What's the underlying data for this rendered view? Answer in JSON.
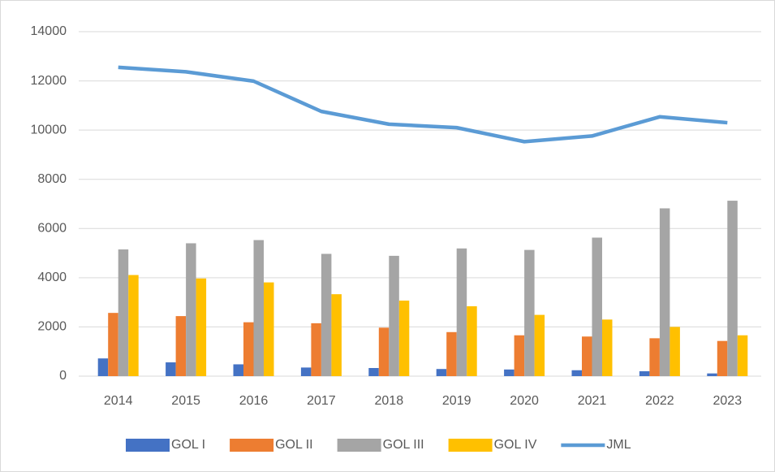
{
  "chart_data": {
    "type": "bar-line",
    "categories": [
      "2014",
      "2015",
      "2016",
      "2017",
      "2018",
      "2019",
      "2020",
      "2021",
      "2022",
      "2023"
    ],
    "series": [
      {
        "name": "GOL I",
        "type": "bar",
        "color": "#4472c4",
        "values": [
          720,
          560,
          480,
          350,
          330,
          290,
          270,
          240,
          200,
          110
        ]
      },
      {
        "name": "GOL II",
        "type": "bar",
        "color": "#ed7d31",
        "values": [
          2570,
          2440,
          2190,
          2150,
          1970,
          1790,
          1660,
          1610,
          1540,
          1430
        ]
      },
      {
        "name": "GOL III",
        "type": "bar",
        "color": "#a5a5a5",
        "values": [
          5150,
          5400,
          5530,
          4970,
          4890,
          5190,
          5130,
          5630,
          6820,
          7130
        ]
      },
      {
        "name": "GOL IV",
        "type": "bar",
        "color": "#ffc000",
        "values": [
          4110,
          3970,
          3810,
          3330,
          3070,
          2840,
          2490,
          2300,
          2000,
          1660
        ]
      },
      {
        "name": "JML",
        "type": "line",
        "color": "#5b9bd5",
        "values": [
          12550,
          12370,
          11990,
          10760,
          10240,
          10100,
          9530,
          9760,
          10540,
          10300
        ]
      }
    ],
    "ylim": [
      0,
      14000
    ],
    "yticks": [
      0,
      2000,
      4000,
      6000,
      8000,
      10000,
      12000,
      14000
    ],
    "grid": true,
    "legend": "bottom"
  }
}
